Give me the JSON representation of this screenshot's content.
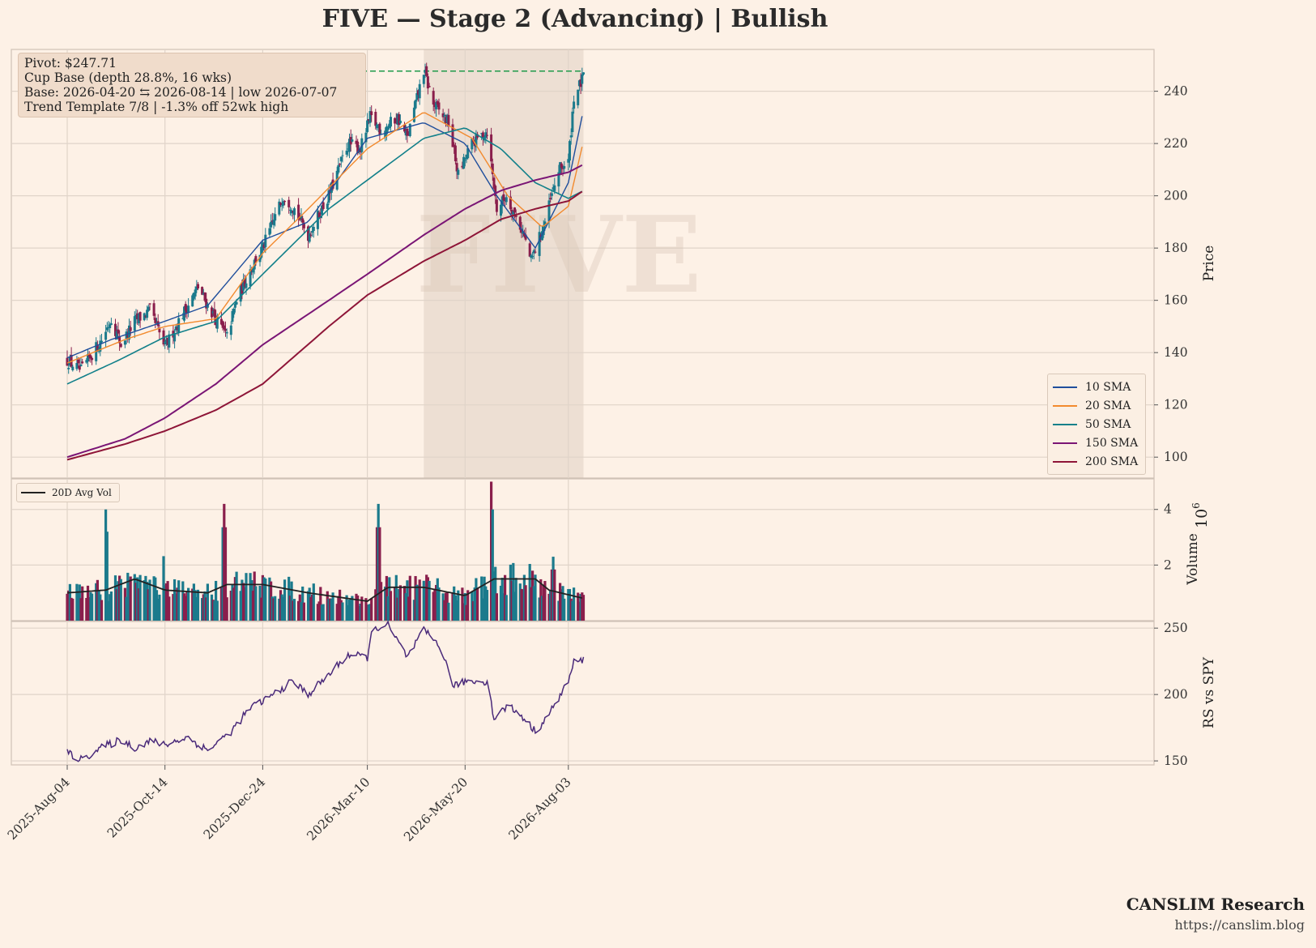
{
  "title": "FIVE  —  Stage 2 (Advancing)  |  Bullish",
  "watermark": "FIVE",
  "info_box": {
    "pivot": "Pivot: $247.71",
    "pattern": "Cup Base  (depth 28.8%, 16 wks)",
    "base": "Base: 2026-04-20 ⇆ 2026-08-14  |  low 2026-07-07",
    "trend": "Trend Template 7/8  |  -1.3% off 52wk high"
  },
  "colors": {
    "background": "#fdf1e6",
    "up_candle": "#1b7a8c",
    "down_candle": "#8a1f4c",
    "sma10": "#1f4e9c",
    "sma20": "#f28a2e",
    "sma50": "#12808a",
    "sma150": "#7a1575",
    "sma200": "#8e1538",
    "pivot_line": "#1f9a4a",
    "rs_line": "#4a2a7a",
    "base_shade": "#c9b7a8"
  },
  "legend_sma": [
    "10 SMA",
    "20 SMA",
    "50 SMA",
    "150 SMA",
    "200 SMA"
  ],
  "legend_vol": "20D Avg Vol",
  "brand": {
    "name": "CANSLIM Research",
    "url": "https://canslim.blog"
  },
  "chart_data": [
    {
      "type": "candlestick",
      "panel": "price",
      "ylabel": "Price",
      "ylim": [
        92,
        256
      ],
      "yticks": [
        100,
        120,
        140,
        160,
        180,
        200,
        220,
        240
      ],
      "x_ticks": [
        "2025-Aug-04",
        "2025-Oct-14",
        "2025-Dec-24",
        "2026-Mar-10",
        "2026-May-20",
        "2026-Aug-03"
      ],
      "x_range": [
        "2025-08-04",
        "2026-08-14"
      ],
      "pivot": 247.71,
      "base_range": [
        "2026-04-20",
        "2026-08-14"
      ],
      "close_anchors": [
        [
          "2025-08-04",
          137
        ],
        [
          "2025-08-14",
          133
        ],
        [
          "2025-08-29",
          145
        ],
        [
          "2025-09-05",
          153
        ],
        [
          "2025-09-12",
          143
        ],
        [
          "2025-09-22",
          152
        ],
        [
          "2025-10-03",
          156
        ],
        [
          "2025-10-14",
          142
        ],
        [
          "2025-10-24",
          152
        ],
        [
          "2025-11-07",
          165
        ],
        [
          "2025-11-14",
          158
        ],
        [
          "2025-11-28",
          146
        ],
        [
          "2025-12-05",
          160
        ],
        [
          "2025-12-15",
          172
        ],
        [
          "2025-12-24",
          180
        ],
        [
          "2026-01-08",
          200
        ],
        [
          "2026-01-15",
          196
        ],
        [
          "2026-01-26",
          185
        ],
        [
          "2026-02-10",
          200
        ],
        [
          "2026-02-24",
          220
        ],
        [
          "2026-03-05",
          218
        ],
        [
          "2026-03-12",
          230
        ],
        [
          "2026-03-20",
          225
        ],
        [
          "2026-04-01",
          230
        ],
        [
          "2026-04-08",
          222
        ],
        [
          "2026-04-20",
          248
        ],
        [
          "2026-04-27",
          235
        ],
        [
          "2026-05-08",
          228
        ],
        [
          "2026-05-15",
          208
        ],
        [
          "2026-05-25",
          220
        ],
        [
          "2026-06-05",
          225
        ],
        [
          "2026-06-12",
          195
        ],
        [
          "2026-06-19",
          200
        ],
        [
          "2026-07-01",
          186
        ],
        [
          "2026-07-07",
          175
        ],
        [
          "2026-07-17",
          190
        ],
        [
          "2026-07-27",
          210
        ],
        [
          "2026-08-03",
          213
        ],
        [
          "2026-08-07",
          238
        ],
        [
          "2026-08-14",
          245
        ]
      ],
      "sma": {
        "10 SMA": [
          [
            "2025-08-04",
            138
          ],
          [
            "2025-09-05",
            145
          ],
          [
            "2025-10-14",
            152
          ],
          [
            "2025-11-14",
            158
          ],
          [
            "2025-12-24",
            183
          ],
          [
            "2026-01-26",
            190
          ],
          [
            "2026-03-10",
            222
          ],
          [
            "2026-04-20",
            228
          ],
          [
            "2026-05-20",
            220
          ],
          [
            "2026-06-12",
            200
          ],
          [
            "2026-07-10",
            180
          ],
          [
            "2026-08-03",
            205
          ],
          [
            "2026-08-14",
            233
          ]
        ],
        "20 SMA": [
          [
            "2025-08-04",
            136
          ],
          [
            "2025-09-15",
            145
          ],
          [
            "2025-10-14",
            150
          ],
          [
            "2025-11-20",
            153
          ],
          [
            "2025-12-24",
            178
          ],
          [
            "2026-01-26",
            195
          ],
          [
            "2026-03-10",
            218
          ],
          [
            "2026-04-20",
            232
          ],
          [
            "2026-05-25",
            222
          ],
          [
            "2026-06-20",
            200
          ],
          [
            "2026-07-15",
            188
          ],
          [
            "2026-08-03",
            196
          ],
          [
            "2026-08-14",
            221
          ]
        ],
        "50 SMA": [
          [
            "2025-08-04",
            128
          ],
          [
            "2025-09-10",
            137
          ],
          [
            "2025-10-14",
            146
          ],
          [
            "2025-11-20",
            152
          ],
          [
            "2025-12-24",
            170
          ],
          [
            "2026-02-10",
            195
          ],
          [
            "2026-03-10",
            206
          ],
          [
            "2026-04-20",
            222
          ],
          [
            "2026-05-20",
            226
          ],
          [
            "2026-06-15",
            218
          ],
          [
            "2026-07-10",
            205
          ],
          [
            "2026-08-03",
            199
          ],
          [
            "2026-08-14",
            202
          ]
        ],
        "150 SMA": [
          [
            "2025-08-04",
            100
          ],
          [
            "2025-09-15",
            107
          ],
          [
            "2025-10-14",
            115
          ],
          [
            "2025-11-20",
            128
          ],
          [
            "2025-12-24",
            143
          ],
          [
            "2026-02-10",
            160
          ],
          [
            "2026-03-10",
            170
          ],
          [
            "2026-04-20",
            185
          ],
          [
            "2026-05-20",
            195
          ],
          [
            "2026-06-15",
            202
          ],
          [
            "2026-07-10",
            206
          ],
          [
            "2026-08-03",
            209
          ],
          [
            "2026-08-14",
            212
          ]
        ],
        "200 SMA": [
          [
            "2025-08-04",
            99
          ],
          [
            "2025-09-15",
            105
          ],
          [
            "2025-10-14",
            110
          ],
          [
            "2025-11-20",
            118
          ],
          [
            "2025-12-24",
            128
          ],
          [
            "2026-02-10",
            150
          ],
          [
            "2026-03-10",
            162
          ],
          [
            "2026-04-20",
            175
          ],
          [
            "2026-05-20",
            183
          ],
          [
            "2026-06-15",
            191
          ],
          [
            "2026-07-10",
            195
          ],
          [
            "2026-08-03",
            198
          ],
          [
            "2026-08-14",
            202
          ]
        ]
      }
    },
    {
      "type": "bar",
      "panel": "volume",
      "ylabel": "Volume",
      "yscale_label": "10^6",
      "ylim": [
        0,
        5.1
      ],
      "yticks": [
        2,
        4
      ],
      "spikes": [
        [
          "2025-09-01",
          4.0
        ],
        [
          "2025-10-12",
          2.9
        ],
        [
          "2025-11-26",
          4.2
        ],
        [
          "2026-03-18",
          4.2
        ],
        [
          "2026-06-08",
          5.0
        ],
        [
          "2026-07-23",
          2.3
        ]
      ],
      "avg_vol_anchors": [
        [
          "2025-08-04",
          1.0
        ],
        [
          "2025-09-01",
          1.1
        ],
        [
          "2025-09-22",
          1.5
        ],
        [
          "2025-10-14",
          1.1
        ],
        [
          "2025-11-14",
          1.0
        ],
        [
          "2025-11-28",
          1.3
        ],
        [
          "2025-12-24",
          1.3
        ],
        [
          "2026-01-26",
          1.0
        ],
        [
          "2026-03-10",
          0.7
        ],
        [
          "2026-03-25",
          1.2
        ],
        [
          "2026-04-20",
          1.2
        ],
        [
          "2026-05-20",
          0.9
        ],
        [
          "2026-06-10",
          1.5
        ],
        [
          "2026-07-10",
          1.5
        ],
        [
          "2026-07-20",
          1.1
        ],
        [
          "2026-08-14",
          0.8
        ]
      ]
    },
    {
      "type": "line",
      "panel": "rs",
      "ylabel": "RS vs SPY",
      "ylim": [
        147,
        255
      ],
      "yticks": [
        150,
        200,
        250
      ],
      "anchors": [
        [
          "2025-08-04",
          156
        ],
        [
          "2025-08-14",
          151
        ],
        [
          "2025-08-29",
          160
        ],
        [
          "2025-09-12",
          166
        ],
        [
          "2025-09-22",
          160
        ],
        [
          "2025-10-03",
          165
        ],
        [
          "2025-10-14",
          162
        ],
        [
          "2025-10-30",
          168
        ],
        [
          "2025-11-14",
          158
        ],
        [
          "2025-12-01",
          172
        ],
        [
          "2025-12-15",
          190
        ],
        [
          "2025-12-24",
          195
        ],
        [
          "2026-01-15",
          210
        ],
        [
          "2026-01-26",
          200
        ],
        [
          "2026-02-10",
          215
        ],
        [
          "2026-02-24",
          230
        ],
        [
          "2026-03-10",
          228
        ],
        [
          "2026-03-14",
          250
        ],
        [
          "2026-03-25",
          252
        ],
        [
          "2026-04-08",
          228
        ],
        [
          "2026-04-20",
          248
        ],
        [
          "2026-05-01",
          238
        ],
        [
          "2026-05-12",
          206
        ],
        [
          "2026-05-20",
          210
        ],
        [
          "2026-06-05",
          210
        ],
        [
          "2026-06-10",
          182
        ],
        [
          "2026-06-20",
          192
        ],
        [
          "2026-07-01",
          183
        ],
        [
          "2026-07-10",
          172
        ],
        [
          "2026-07-20",
          185
        ],
        [
          "2026-08-03",
          210
        ],
        [
          "2026-08-07",
          224
        ],
        [
          "2026-08-14",
          226
        ]
      ]
    }
  ]
}
